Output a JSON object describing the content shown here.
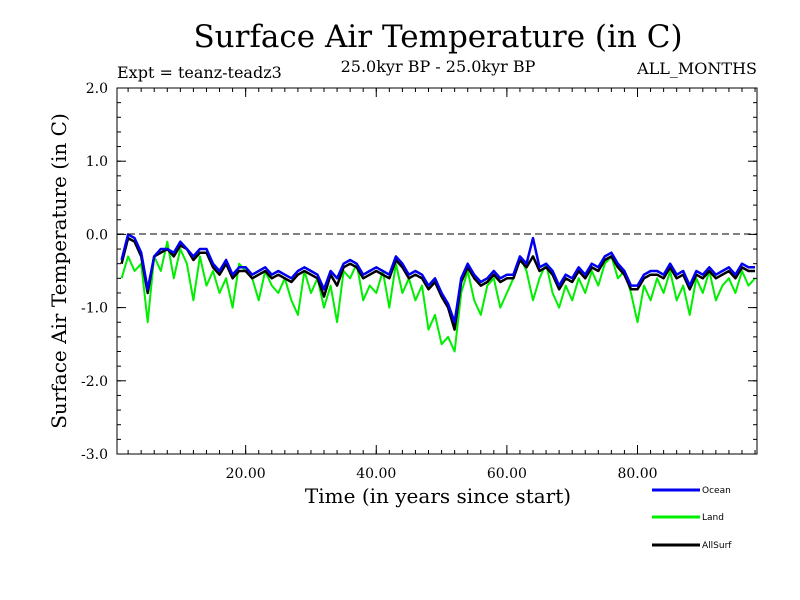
{
  "chart_data": {
    "type": "line",
    "title": "Surface Air Temperature (in C)",
    "subtitle_left": "Expt = teanz-teadz3",
    "subtitle_center": "25.0kyr BP - 25.0kyr BP",
    "subtitle_right": "ALL_MONTHS",
    "xlabel": "Time (in years since start)",
    "ylabel": "Surface Air Temperature (in C)",
    "xlim": [
      0.3,
      98.3
    ],
    "ylim": [
      -3.0,
      2.0
    ],
    "x_ticks": [
      20,
      40,
      60,
      80
    ],
    "x_tick_labels": [
      "20.00",
      "40.00",
      "60.00",
      "80.00"
    ],
    "y_ticks": [
      2.0,
      1.0,
      0.0,
      -1.0,
      -2.0,
      -3.0
    ],
    "y_tick_labels": [
      "2.0",
      "1.0",
      "0.0",
      "-1.0",
      "-2.0",
      "-3.0"
    ],
    "reference_line": {
      "y": 0.0,
      "style": "dashed"
    },
    "legend_position": "bottom-right",
    "series": [
      {
        "name": "Land",
        "color": "#00ee00",
        "x": [
          1,
          2,
          3,
          4,
          5,
          6,
          7,
          8,
          9,
          10,
          11,
          12,
          13,
          14,
          15,
          16,
          17,
          18,
          19,
          20,
          21,
          22,
          23,
          24,
          25,
          26,
          27,
          28,
          29,
          30,
          31,
          32,
          33,
          34,
          35,
          36,
          37,
          38,
          39,
          40,
          41,
          42,
          43,
          44,
          45,
          46,
          47,
          48,
          49,
          50,
          51,
          52,
          53,
          54,
          55,
          56,
          57,
          58,
          59,
          60,
          61,
          62,
          63,
          64,
          65,
          66,
          67,
          68,
          69,
          70,
          71,
          72,
          73,
          74,
          75,
          76,
          77,
          78,
          79,
          80,
          81,
          82,
          83,
          84,
          85,
          86,
          87,
          88,
          89,
          90,
          91,
          92,
          93,
          94,
          95,
          96,
          97,
          98
        ],
        "values": [
          -0.6,
          -0.3,
          -0.5,
          -0.4,
          -1.2,
          -0.3,
          -0.5,
          -0.1,
          -0.6,
          -0.2,
          -0.4,
          -0.9,
          -0.3,
          -0.7,
          -0.5,
          -0.8,
          -0.6,
          -1.0,
          -0.4,
          -0.5,
          -0.6,
          -0.9,
          -0.5,
          -0.7,
          -0.8,
          -0.6,
          -0.9,
          -1.1,
          -0.5,
          -0.8,
          -0.6,
          -1.0,
          -0.7,
          -1.2,
          -0.5,
          -0.6,
          -0.4,
          -0.9,
          -0.7,
          -0.8,
          -0.5,
          -1.0,
          -0.4,
          -0.8,
          -0.6,
          -0.9,
          -0.7,
          -1.3,
          -1.1,
          -1.5,
          -1.4,
          -1.6,
          -0.8,
          -0.5,
          -0.9,
          -1.1,
          -0.7,
          -0.6,
          -1.0,
          -0.8,
          -0.6,
          -0.3,
          -0.5,
          -0.9,
          -0.6,
          -0.4,
          -0.8,
          -1.0,
          -0.7,
          -0.9,
          -0.6,
          -0.8,
          -0.5,
          -0.7,
          -0.4,
          -0.3,
          -0.6,
          -0.5,
          -0.8,
          -1.2,
          -0.7,
          -0.9,
          -0.6,
          -0.8,
          -0.5,
          -0.9,
          -0.7,
          -1.1,
          -0.6,
          -0.8,
          -0.5,
          -0.9,
          -0.7,
          -0.6,
          -0.8,
          -0.5,
          -0.7,
          -0.6
        ]
      },
      {
        "name": "AllSurf",
        "color": "#000000",
        "x": [
          1,
          2,
          3,
          4,
          5,
          6,
          7,
          8,
          9,
          10,
          11,
          12,
          13,
          14,
          15,
          16,
          17,
          18,
          19,
          20,
          21,
          22,
          23,
          24,
          25,
          26,
          27,
          28,
          29,
          30,
          31,
          32,
          33,
          34,
          35,
          36,
          37,
          38,
          39,
          40,
          41,
          42,
          43,
          44,
          45,
          46,
          47,
          48,
          49,
          50,
          51,
          52,
          53,
          54,
          55,
          56,
          57,
          58,
          59,
          60,
          61,
          62,
          63,
          64,
          65,
          66,
          67,
          68,
          69,
          70,
          71,
          72,
          73,
          74,
          75,
          76,
          77,
          78,
          79,
          80,
          81,
          82,
          83,
          84,
          85,
          86,
          87,
          88,
          89,
          90,
          91,
          92,
          93,
          94,
          95,
          96,
          97,
          98
        ],
        "values": [
          -0.4,
          -0.05,
          -0.1,
          -0.3,
          -0.8,
          -0.3,
          -0.25,
          -0.2,
          -0.3,
          -0.15,
          -0.2,
          -0.35,
          -0.25,
          -0.25,
          -0.45,
          -0.55,
          -0.4,
          -0.6,
          -0.5,
          -0.5,
          -0.6,
          -0.55,
          -0.5,
          -0.6,
          -0.55,
          -0.6,
          -0.65,
          -0.55,
          -0.5,
          -0.55,
          -0.6,
          -0.85,
          -0.55,
          -0.7,
          -0.45,
          -0.4,
          -0.45,
          -0.6,
          -0.55,
          -0.5,
          -0.55,
          -0.6,
          -0.35,
          -0.45,
          -0.6,
          -0.55,
          -0.6,
          -0.75,
          -0.65,
          -0.85,
          -1.0,
          -1.3,
          -0.65,
          -0.45,
          -0.6,
          -0.7,
          -0.65,
          -0.55,
          -0.65,
          -0.6,
          -0.6,
          -0.35,
          -0.45,
          -0.3,
          -0.5,
          -0.45,
          -0.55,
          -0.75,
          -0.6,
          -0.65,
          -0.5,
          -0.6,
          -0.45,
          -0.5,
          -0.35,
          -0.3,
          -0.45,
          -0.55,
          -0.75,
          -0.75,
          -0.6,
          -0.55,
          -0.55,
          -0.6,
          -0.45,
          -0.6,
          -0.55,
          -0.75,
          -0.55,
          -0.6,
          -0.5,
          -0.6,
          -0.55,
          -0.5,
          -0.6,
          -0.45,
          -0.5,
          -0.5
        ]
      },
      {
        "name": "Ocean",
        "color": "#0000ee",
        "x": [
          1,
          2,
          3,
          4,
          5,
          6,
          7,
          8,
          9,
          10,
          11,
          12,
          13,
          14,
          15,
          16,
          17,
          18,
          19,
          20,
          21,
          22,
          23,
          24,
          25,
          26,
          27,
          28,
          29,
          30,
          31,
          32,
          33,
          34,
          35,
          36,
          37,
          38,
          39,
          40,
          41,
          42,
          43,
          44,
          45,
          46,
          47,
          48,
          49,
          50,
          51,
          52,
          53,
          54,
          55,
          56,
          57,
          58,
          59,
          60,
          61,
          62,
          63,
          64,
          65,
          66,
          67,
          68,
          69,
          70,
          71,
          72,
          73,
          74,
          75,
          76,
          77,
          78,
          79,
          80,
          81,
          82,
          83,
          84,
          85,
          86,
          87,
          88,
          89,
          90,
          91,
          92,
          93,
          94,
          95,
          96,
          97,
          98
        ],
        "values": [
          -0.35,
          0.0,
          -0.05,
          -0.25,
          -0.75,
          -0.3,
          -0.2,
          -0.2,
          -0.25,
          -0.1,
          -0.2,
          -0.3,
          -0.2,
          -0.2,
          -0.4,
          -0.5,
          -0.35,
          -0.55,
          -0.45,
          -0.45,
          -0.55,
          -0.5,
          -0.45,
          -0.55,
          -0.5,
          -0.55,
          -0.6,
          -0.5,
          -0.45,
          -0.5,
          -0.55,
          -0.75,
          -0.5,
          -0.6,
          -0.4,
          -0.35,
          -0.4,
          -0.55,
          -0.5,
          -0.45,
          -0.5,
          -0.55,
          -0.3,
          -0.4,
          -0.55,
          -0.5,
          -0.55,
          -0.7,
          -0.6,
          -0.8,
          -0.95,
          -1.2,
          -0.6,
          -0.4,
          -0.55,
          -0.65,
          -0.6,
          -0.5,
          -0.6,
          -0.55,
          -0.55,
          -0.3,
          -0.4,
          -0.05,
          -0.45,
          -0.4,
          -0.5,
          -0.7,
          -0.55,
          -0.6,
          -0.45,
          -0.55,
          -0.4,
          -0.45,
          -0.3,
          -0.25,
          -0.4,
          -0.5,
          -0.7,
          -0.7,
          -0.55,
          -0.5,
          -0.5,
          -0.55,
          -0.4,
          -0.55,
          -0.5,
          -0.7,
          -0.5,
          -0.55,
          -0.45,
          -0.55,
          -0.5,
          -0.45,
          -0.55,
          -0.4,
          -0.45,
          -0.45
        ]
      }
    ],
    "legend": [
      "Ocean",
      "Land",
      "AllSurf"
    ]
  }
}
